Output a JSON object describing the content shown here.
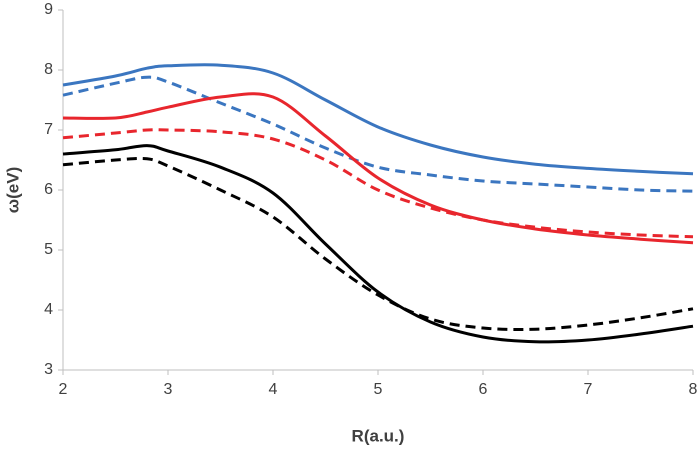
{
  "chart_data": {
    "type": "line",
    "x_label": "R(a.u.)",
    "y_label": "ω(eV)",
    "x": [
      2,
      2.5,
      2.8,
      3,
      3.5,
      4,
      4.5,
      5,
      5.5,
      6,
      6.5,
      7,
      7.5,
      8
    ],
    "series": [
      {
        "color": "#3b76c0",
        "dash": false,
        "values": [
          7.75,
          7.9,
          8.03,
          8.07,
          8.08,
          7.95,
          7.5,
          7.05,
          6.75,
          6.55,
          6.43,
          6.36,
          6.31,
          6.27
        ]
      },
      {
        "color": "#3b76c0",
        "dash": true,
        "values": [
          7.58,
          7.78,
          7.88,
          7.8,
          7.45,
          7.1,
          6.7,
          6.38,
          6.25,
          6.15,
          6.1,
          6.05,
          6.0,
          5.98
        ]
      },
      {
        "color": "#e8262d",
        "dash": false,
        "values": [
          7.2,
          7.2,
          7.3,
          7.38,
          7.55,
          7.55,
          6.9,
          6.2,
          5.75,
          5.5,
          5.35,
          5.25,
          5.18,
          5.12
        ]
      },
      {
        "color": "#e8262d",
        "dash": true,
        "values": [
          6.87,
          6.95,
          7.0,
          7.0,
          6.97,
          6.85,
          6.5,
          6.0,
          5.7,
          5.5,
          5.38,
          5.3,
          5.25,
          5.22
        ]
      },
      {
        "color": "#000000",
        "dash": false,
        "values": [
          6.6,
          6.67,
          6.74,
          6.65,
          6.38,
          5.95,
          5.1,
          4.3,
          3.8,
          3.55,
          3.47,
          3.5,
          3.6,
          3.73
        ]
      },
      {
        "color": "#000000",
        "dash": true,
        "values": [
          6.42,
          6.5,
          6.52,
          6.4,
          6.0,
          5.55,
          4.85,
          4.25,
          3.85,
          3.7,
          3.68,
          3.75,
          3.87,
          4.02
        ]
      }
    ],
    "xlim": [
      2,
      8
    ],
    "xticks": [
      2,
      3,
      4,
      5,
      6,
      7,
      8
    ],
    "ylim": [
      3,
      9
    ],
    "yticks": [
      3,
      4,
      5,
      6,
      7,
      8,
      9
    ],
    "grid": false
  }
}
